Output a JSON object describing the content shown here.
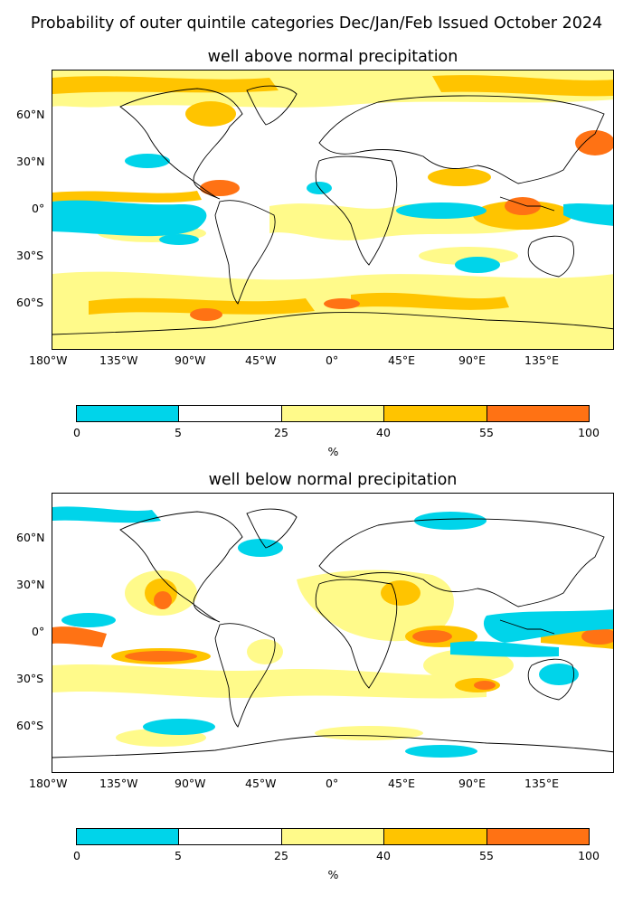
{
  "suptitle": "Probability of outer quintile categories Dec/Jan/Feb Issued October 2024",
  "colors": {
    "c0_5": "#00d4ea",
    "c5_25": "#ffffff",
    "c25_40": "#fffa8a",
    "c40_55": "#ffc400",
    "c55_100": "#ff7214",
    "coast": "#000000"
  },
  "axes": {
    "lon_ticks": [
      "180°W",
      "135°W",
      "90°W",
      "45°W",
      "0°",
      "45°E",
      "90°E",
      "135°E"
    ],
    "lat_ticks": [
      "60°N",
      "30°N",
      "0°",
      "30°S",
      "60°S"
    ]
  },
  "panels": [
    {
      "title": "well above normal precipitation",
      "colorbar": {
        "ticks": [
          "0",
          "5",
          "25",
          "40",
          "55",
          "100"
        ],
        "unit": "%"
      }
    },
    {
      "title": "well below normal precipitation",
      "colorbar": {
        "ticks": [
          "0",
          "5",
          "25",
          "40",
          "55",
          "100"
        ],
        "unit": "%"
      }
    }
  ]
}
